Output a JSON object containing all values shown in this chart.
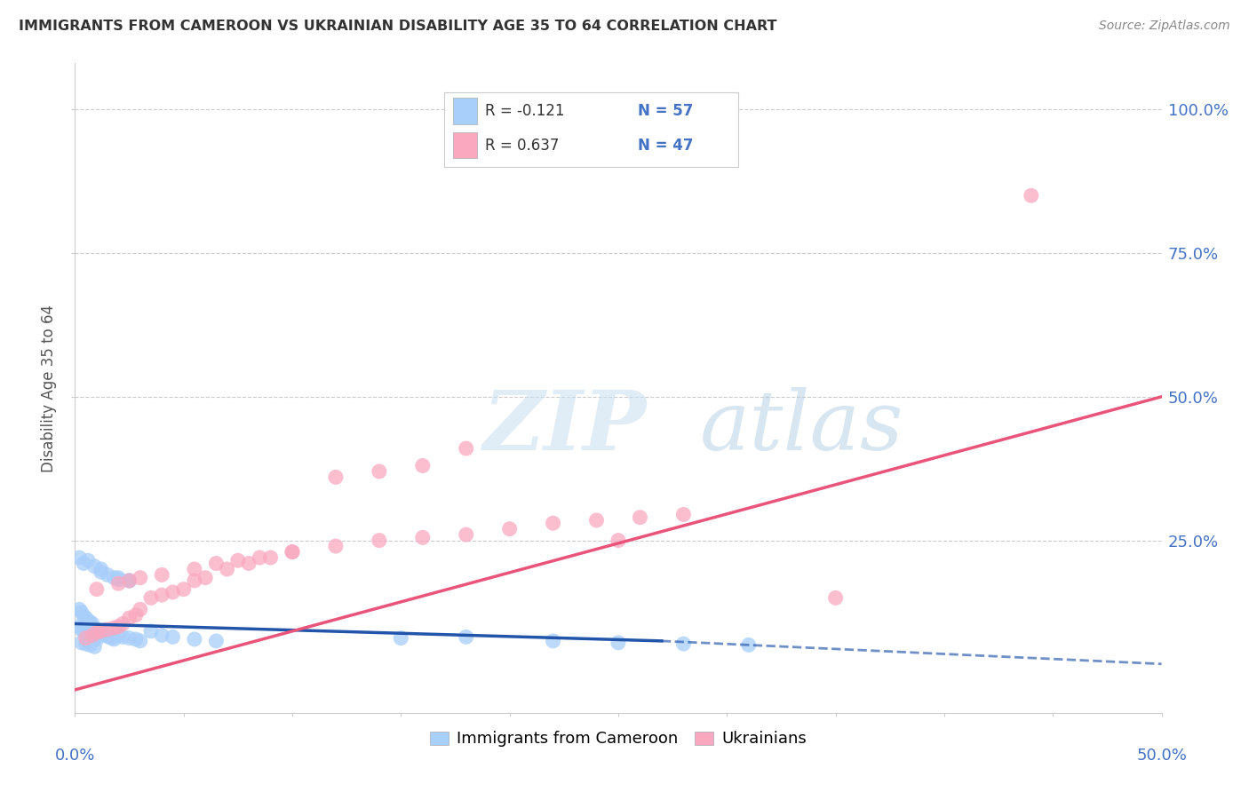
{
  "title": "IMMIGRANTS FROM CAMEROON VS UKRAINIAN DISABILITY AGE 35 TO 64 CORRELATION CHART",
  "source": "Source: ZipAtlas.com",
  "ylabel": "Disability Age 35 to 64",
  "yticks": [
    "100.0%",
    "75.0%",
    "50.0%",
    "25.0%"
  ],
  "ytick_vals": [
    1.0,
    0.75,
    0.5,
    0.25
  ],
  "xmin": 0.0,
  "xmax": 0.5,
  "ymin": -0.05,
  "ymax": 1.08,
  "blue_color": "#A8CEFA",
  "pink_color": "#F9A8C0",
  "blue_line_color": "#2255AA",
  "pink_line_color": "#E8547A",
  "watermark_zip": "ZIP",
  "watermark_atlas": "atlas",
  "cameroon_x": [
    0.002,
    0.003,
    0.004,
    0.005,
    0.006,
    0.007,
    0.008,
    0.009,
    0.01,
    0.002,
    0.003,
    0.004,
    0.005,
    0.006,
    0.007,
    0.008,
    0.01,
    0.011,
    0.012,
    0.013,
    0.014,
    0.015,
    0.016,
    0.017,
    0.018,
    0.02,
    0.022,
    0.025,
    0.028,
    0.03,
    0.012,
    0.015,
    0.018,
    0.02,
    0.025,
    0.003,
    0.005,
    0.007,
    0.009,
    0.035,
    0.04,
    0.045,
    0.055,
    0.065,
    0.15,
    0.18,
    0.22,
    0.25,
    0.28,
    0.31,
    0.002,
    0.004,
    0.006,
    0.009,
    0.012,
    0.02,
    0.025
  ],
  "cameroon_y": [
    0.1,
    0.095,
    0.092,
    0.09,
    0.085,
    0.088,
    0.082,
    0.08,
    0.078,
    0.13,
    0.125,
    0.118,
    0.115,
    0.11,
    0.108,
    0.105,
    0.095,
    0.092,
    0.09,
    0.088,
    0.085,
    0.083,
    0.082,
    0.08,
    0.078,
    0.085,
    0.082,
    0.08,
    0.078,
    0.075,
    0.195,
    0.19,
    0.185,
    0.182,
    0.18,
    0.072,
    0.07,
    0.068,
    0.065,
    0.092,
    0.085,
    0.082,
    0.078,
    0.075,
    0.08,
    0.082,
    0.075,
    0.072,
    0.07,
    0.068,
    0.22,
    0.21,
    0.215,
    0.205,
    0.2,
    0.185,
    0.18
  ],
  "ukrainian_x": [
    0.005,
    0.008,
    0.01,
    0.012,
    0.015,
    0.018,
    0.02,
    0.022,
    0.025,
    0.028,
    0.03,
    0.035,
    0.04,
    0.045,
    0.05,
    0.055,
    0.06,
    0.07,
    0.08,
    0.09,
    0.1,
    0.12,
    0.14,
    0.16,
    0.18,
    0.2,
    0.22,
    0.24,
    0.26,
    0.28,
    0.01,
    0.02,
    0.025,
    0.03,
    0.04,
    0.055,
    0.065,
    0.075,
    0.085,
    0.1,
    0.12,
    0.14,
    0.16,
    0.18,
    0.25,
    0.35,
    0.44
  ],
  "ukrainian_y": [
    0.08,
    0.085,
    0.09,
    0.092,
    0.095,
    0.098,
    0.1,
    0.105,
    0.115,
    0.12,
    0.13,
    0.15,
    0.155,
    0.16,
    0.165,
    0.18,
    0.185,
    0.2,
    0.21,
    0.22,
    0.23,
    0.24,
    0.25,
    0.255,
    0.26,
    0.27,
    0.28,
    0.285,
    0.29,
    0.295,
    0.165,
    0.175,
    0.18,
    0.185,
    0.19,
    0.2,
    0.21,
    0.215,
    0.22,
    0.23,
    0.36,
    0.37,
    0.38,
    0.41,
    0.25,
    0.15,
    0.85
  ],
  "cam_trend_x0": 0.0,
  "cam_trend_x_solid_end": 0.27,
  "cam_trend_x_end": 0.5,
  "cam_trend_y0": 0.105,
  "cam_trend_y_solid_end": 0.075,
  "cam_trend_y_end": 0.035,
  "ukr_trend_x0": 0.0,
  "ukr_trend_x_end": 0.5,
  "ukr_trend_y0": -0.01,
  "ukr_trend_y_end": 0.5
}
